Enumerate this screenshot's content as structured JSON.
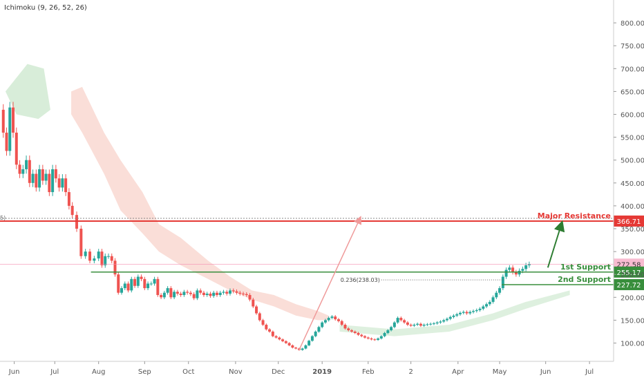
{
  "indicator_label": "Ichimoku (9, 26, 52, 26)",
  "colors": {
    "bull": "#26a69a",
    "bear": "#ef5350",
    "cloud_bull": "#c8e6c9",
    "cloud_bear": "#f8d0c8",
    "resistance": "#e53935",
    "support": "#388e3c",
    "arrow_up": "#2e7d32",
    "arrow_pink": "#ef9a9a",
    "axis_text": "#555555",
    "grid": "#eeeeee"
  },
  "chart_data": {
    "type": "candlestick",
    "title": "",
    "xlabel": "",
    "ylabel": "",
    "ylim": [
      60,
      850
    ],
    "yticks": [
      100,
      150,
      200,
      250,
      300,
      350,
      400,
      450,
      500,
      550,
      600,
      650,
      700,
      750,
      800
    ],
    "ytick_labels": [
      "100.00",
      "150.00",
      "200.00",
      "250.00",
      "300.00",
      "350.00",
      "400.00",
      "450.00",
      "500.00",
      "550.00",
      "600.00",
      "650.00",
      "700.00",
      "750.00",
      "800.00"
    ],
    "x_labels": [
      "Jun",
      "Jul",
      "Aug",
      "Sep",
      "Oct",
      "Nov",
      "Dec",
      "2019",
      "Feb",
      "2",
      "Apr",
      "May",
      "Jun",
      "Jul"
    ],
    "price_path": [
      [
        0,
        610
      ],
      [
        0.3,
        560
      ],
      [
        0.6,
        520
      ],
      [
        0.9,
        615
      ],
      [
        1.2,
        560
      ],
      [
        1.5,
        490
      ],
      [
        1.8,
        470
      ],
      [
        2.1,
        480
      ],
      [
        2.4,
        500
      ],
      [
        2.7,
        450
      ],
      [
        3.0,
        470
      ],
      [
        3.3,
        440
      ],
      [
        3.6,
        480
      ],
      [
        3.9,
        455
      ],
      [
        4.2,
        470
      ],
      [
        4.5,
        430
      ],
      [
        4.8,
        480
      ],
      [
        5.1,
        460
      ],
      [
        5.4,
        440
      ],
      [
        5.7,
        460
      ],
      [
        6.0,
        430
      ],
      [
        6.3,
        400
      ],
      [
        6.6,
        380
      ],
      [
        7.0,
        350
      ],
      [
        7.4,
        290
      ],
      [
        7.8,
        300
      ],
      [
        8.2,
        280
      ],
      [
        8.6,
        285
      ],
      [
        9.0,
        300
      ],
      [
        9.3,
        270
      ],
      [
        9.6,
        290
      ],
      [
        9.9,
        290
      ],
      [
        10.2,
        280
      ],
      [
        10.5,
        250
      ],
      [
        10.8,
        210
      ],
      [
        11.1,
        220
      ],
      [
        11.4,
        230
      ],
      [
        11.7,
        215
      ],
      [
        12.0,
        240
      ],
      [
        12.3,
        225
      ],
      [
        12.6,
        245
      ],
      [
        12.9,
        240
      ],
      [
        13.2,
        220
      ],
      [
        13.5,
        230
      ],
      [
        13.8,
        230
      ],
      [
        14.1,
        240
      ],
      [
        14.4,
        205
      ],
      [
        14.7,
        200
      ],
      [
        15.0,
        210
      ],
      [
        15.3,
        220
      ],
      [
        15.6,
        200
      ],
      [
        15.9,
        212
      ],
      [
        16.2,
        208
      ],
      [
        16.5,
        205
      ],
      [
        16.8,
        212
      ],
      [
        17.1,
        210
      ],
      [
        17.4,
        207
      ],
      [
        17.7,
        198
      ],
      [
        18.0,
        215
      ],
      [
        18.3,
        210
      ],
      [
        18.6,
        205
      ],
      [
        18.9,
        208
      ],
      [
        19.2,
        203
      ],
      [
        19.5,
        210
      ],
      [
        19.8,
        205
      ],
      [
        20.1,
        210
      ],
      [
        20.4,
        212
      ],
      [
        20.7,
        208
      ],
      [
        21.0,
        215
      ],
      [
        21.3,
        213
      ],
      [
        21.6,
        210
      ],
      [
        21.9,
        208
      ],
      [
        22.2,
        207
      ],
      [
        22.5,
        205
      ],
      [
        22.8,
        195
      ],
      [
        23.1,
        180
      ],
      [
        23.4,
        165
      ],
      [
        23.7,
        150
      ],
      [
        24.0,
        140
      ],
      [
        24.3,
        130
      ],
      [
        24.6,
        125
      ],
      [
        24.9,
        115
      ],
      [
        25.2,
        112
      ],
      [
        25.5,
        108
      ],
      [
        25.8,
        104
      ],
      [
        26.1,
        100
      ],
      [
        26.4,
        95
      ],
      [
        26.7,
        90
      ],
      [
        27.0,
        88
      ],
      [
        27.3,
        85
      ],
      [
        27.6,
        88
      ],
      [
        27.9,
        95
      ],
      [
        28.2,
        105
      ],
      [
        28.5,
        115
      ],
      [
        28.8,
        125
      ],
      [
        29.1,
        135
      ],
      [
        29.4,
        145
      ],
      [
        29.7,
        150
      ],
      [
        30.0,
        155
      ],
      [
        30.3,
        158
      ],
      [
        30.6,
        152
      ],
      [
        30.9,
        148
      ],
      [
        31.2,
        140
      ],
      [
        31.5,
        132
      ],
      [
        31.8,
        128
      ],
      [
        32.1,
        125
      ],
      [
        32.4,
        122
      ],
      [
        32.7,
        118
      ],
      [
        33.0,
        115
      ],
      [
        33.3,
        112
      ],
      [
        33.6,
        110
      ],
      [
        33.9,
        108
      ],
      [
        34.2,
        107
      ],
      [
        34.5,
        110
      ],
      [
        34.8,
        115
      ],
      [
        35.1,
        122
      ],
      [
        35.4,
        128
      ],
      [
        35.7,
        135
      ],
      [
        36.0,
        145
      ],
      [
        36.3,
        155
      ],
      [
        36.6,
        150
      ],
      [
        36.9,
        145
      ],
      [
        37.2,
        140
      ],
      [
        37.5,
        138
      ],
      [
        37.8,
        140
      ],
      [
        38.1,
        142
      ],
      [
        38.4,
        138
      ],
      [
        38.7,
        140
      ],
      [
        39.0,
        141
      ],
      [
        39.3,
        142
      ],
      [
        39.6,
        143
      ],
      [
        39.9,
        145
      ],
      [
        40.2,
        147
      ],
      [
        40.5,
        150
      ],
      [
        40.8,
        153
      ],
      [
        41.1,
        157
      ],
      [
        41.4,
        160
      ],
      [
        41.7,
        163
      ],
      [
        42.0,
        166
      ],
      [
        42.3,
        168
      ],
      [
        42.6,
        165
      ],
      [
        42.9,
        168
      ],
      [
        43.2,
        170
      ],
      [
        43.5,
        172
      ],
      [
        43.8,
        175
      ],
      [
        44.1,
        180
      ],
      [
        44.4,
        185
      ],
      [
        44.7,
        190
      ],
      [
        45.0,
        200
      ],
      [
        45.3,
        210
      ],
      [
        45.6,
        220
      ],
      [
        45.9,
        245
      ],
      [
        46.2,
        260
      ],
      [
        46.5,
        265
      ],
      [
        46.8,
        255
      ],
      [
        47.1,
        250
      ],
      [
        47.4,
        258
      ],
      [
        47.7,
        262
      ],
      [
        48.0,
        270
      ],
      [
        48.3,
        272.58
      ]
    ],
    "levels": [
      {
        "name": "Major Resistance",
        "value": 366.71,
        "label": "366.71"
      },
      {
        "name": "1st Support",
        "value": 255.17,
        "label": "255.17"
      },
      {
        "name": "2nd Support",
        "value": 227.72,
        "label": "227.72"
      }
    ],
    "current_price": 272.58,
    "current_price_label": "272.58",
    "fib_label": "0.236(238.03)",
    "left_edge_marker": "5)"
  }
}
